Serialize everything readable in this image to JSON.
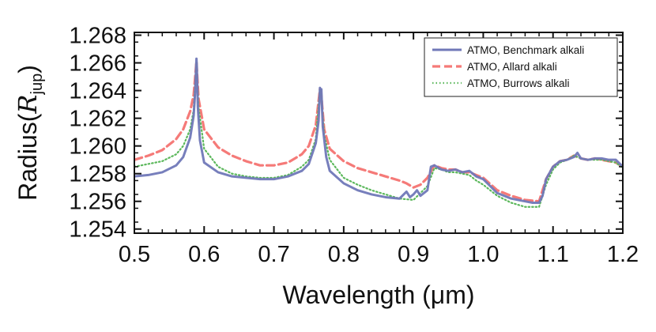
{
  "chart_data": {
    "type": "line",
    "title": "",
    "xlabel": "Wavelength (μm)",
    "ylabel": {
      "prefix": "Radius(",
      "symbol": "R",
      "subscript": "jup",
      "suffix": ")"
    },
    "xlim": [
      0.5,
      1.2
    ],
    "ylim": [
      1.2537,
      1.2682
    ],
    "xticks": [
      0.5,
      0.6,
      0.7,
      0.8,
      0.9,
      1.0,
      1.1,
      1.2
    ],
    "xtick_labels": [
      "0.5",
      "0.6",
      "0.7",
      "0.8",
      "0.9",
      "1.0",
      "1.1",
      "1.2"
    ],
    "yticks": [
      1.254,
      1.256,
      1.258,
      1.26,
      1.262,
      1.264,
      1.266,
      1.268
    ],
    "ytick_labels": [
      "1.254",
      "1.256",
      "1.258",
      "1.260",
      "1.262",
      "1.264",
      "1.266",
      "1.268"
    ],
    "grid": false,
    "legend_position": "top-right",
    "series": [
      {
        "name": "ATMO, Benchmark alkali",
        "color": "#7078b8",
        "style": "solid",
        "x": [
          0.5,
          0.52,
          0.54,
          0.56,
          0.57,
          0.58,
          0.585,
          0.587,
          0.589,
          0.5895,
          0.591,
          0.594,
          0.6,
          0.62,
          0.64,
          0.66,
          0.68,
          0.7,
          0.72,
          0.74,
          0.75,
          0.76,
          0.764,
          0.766,
          0.767,
          0.768,
          0.77,
          0.775,
          0.78,
          0.8,
          0.82,
          0.84,
          0.86,
          0.88,
          0.89,
          0.895,
          0.9,
          0.905,
          0.91,
          0.92,
          0.925,
          0.93,
          0.94,
          0.95,
          0.96,
          0.97,
          0.98,
          0.99,
          1.0,
          1.02,
          1.04,
          1.06,
          1.07,
          1.08,
          1.085,
          1.09,
          1.1,
          1.11,
          1.12,
          1.13,
          1.135,
          1.14,
          1.15,
          1.16,
          1.17,
          1.18,
          1.19,
          1.2
        ],
        "y": [
          1.2578,
          1.2579,
          1.2581,
          1.2586,
          1.2592,
          1.2606,
          1.2622,
          1.2638,
          1.2663,
          1.2658,
          1.2628,
          1.2604,
          1.2588,
          1.2581,
          1.2578,
          1.2577,
          1.2576,
          1.2576,
          1.2578,
          1.2582,
          1.2587,
          1.2602,
          1.2618,
          1.2642,
          1.2636,
          1.2641,
          1.2614,
          1.2592,
          1.2582,
          1.2573,
          1.2568,
          1.2565,
          1.2563,
          1.2562,
          1.2567,
          1.2563,
          1.2565,
          1.2568,
          1.2564,
          1.2568,
          1.2585,
          1.2586,
          1.2583,
          1.2582,
          1.2583,
          1.2581,
          1.2582,
          1.2578,
          1.2576,
          1.2566,
          1.2562,
          1.256,
          1.2559,
          1.2559,
          1.2564,
          1.2576,
          1.2585,
          1.2589,
          1.259,
          1.2592,
          1.2595,
          1.2591,
          1.259,
          1.2591,
          1.2591,
          1.259,
          1.259,
          1.2585
        ]
      },
      {
        "name": "ATMO, Allard alkali",
        "color": "#f57a78",
        "style": "dashed",
        "x": [
          0.5,
          0.52,
          0.54,
          0.56,
          0.57,
          0.58,
          0.585,
          0.589,
          0.5895,
          0.592,
          0.6,
          0.62,
          0.64,
          0.66,
          0.68,
          0.7,
          0.72,
          0.74,
          0.75,
          0.76,
          0.766,
          0.768,
          0.772,
          0.78,
          0.8,
          0.82,
          0.84,
          0.86,
          0.88,
          0.89,
          0.9,
          0.91,
          0.92,
          0.93,
          0.94,
          0.95,
          0.96,
          0.97,
          0.98,
          0.99,
          1.0,
          1.02,
          1.04,
          1.06,
          1.08,
          1.09,
          1.1,
          1.11,
          1.12,
          1.13,
          1.14,
          1.15,
          1.16,
          1.17,
          1.18,
          1.19,
          1.2
        ],
        "y": [
          1.259,
          1.2593,
          1.2597,
          1.2605,
          1.2612,
          1.2625,
          1.2637,
          1.2661,
          1.2656,
          1.2634,
          1.2612,
          1.2599,
          1.2593,
          1.2589,
          1.2586,
          1.2586,
          1.2588,
          1.2594,
          1.26,
          1.2615,
          1.2641,
          1.2636,
          1.2612,
          1.2598,
          1.2589,
          1.2584,
          1.2581,
          1.2578,
          1.2575,
          1.2573,
          1.257,
          1.2572,
          1.2577,
          1.2586,
          1.2584,
          1.2583,
          1.2583,
          1.2581,
          1.2581,
          1.2579,
          1.2577,
          1.2568,
          1.2564,
          1.2561,
          1.256,
          1.2576,
          1.2585,
          1.2589,
          1.259,
          1.2593,
          1.2591,
          1.259,
          1.2591,
          1.259,
          1.2589,
          1.2588,
          1.2585
        ]
      },
      {
        "name": "ATMO, Burrows alkali",
        "color": "#5cb85c",
        "style": "dotted",
        "x": [
          0.5,
          0.52,
          0.54,
          0.56,
          0.57,
          0.58,
          0.585,
          0.589,
          0.5895,
          0.592,
          0.6,
          0.62,
          0.64,
          0.66,
          0.68,
          0.7,
          0.72,
          0.74,
          0.75,
          0.76,
          0.766,
          0.768,
          0.772,
          0.78,
          0.8,
          0.82,
          0.84,
          0.86,
          0.88,
          0.9,
          0.91,
          0.92,
          0.93,
          0.94,
          0.95,
          0.96,
          0.97,
          0.98,
          0.99,
          1.0,
          1.02,
          1.04,
          1.06,
          1.08,
          1.09,
          1.1,
          1.11,
          1.12,
          1.13,
          1.14,
          1.15,
          1.16,
          1.17,
          1.18,
          1.19,
          1.2
        ],
        "y": [
          1.2585,
          1.2587,
          1.2589,
          1.2594,
          1.26,
          1.2612,
          1.2626,
          1.2661,
          1.2656,
          1.2628,
          1.2598,
          1.2585,
          1.258,
          1.2578,
          1.2577,
          1.2577,
          1.2579,
          1.2585,
          1.259,
          1.2605,
          1.2641,
          1.2636,
          1.2608,
          1.259,
          1.2577,
          1.2572,
          1.2568,
          1.2565,
          1.2562,
          1.2561,
          1.2566,
          1.2571,
          1.2584,
          1.2583,
          1.2581,
          1.2581,
          1.258,
          1.2579,
          1.2575,
          1.2572,
          1.2564,
          1.2559,
          1.2556,
          1.2556,
          1.2572,
          1.2583,
          1.2588,
          1.259,
          1.2593,
          1.2591,
          1.259,
          1.259,
          1.259,
          1.2589,
          1.2588,
          1.2584
        ]
      }
    ]
  }
}
